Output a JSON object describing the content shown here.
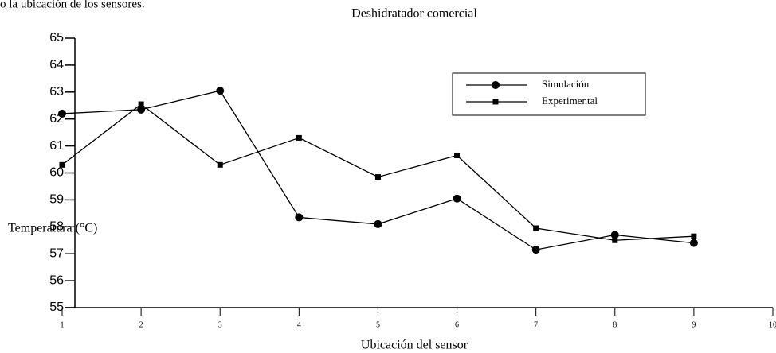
{
  "header_text": "o la ubicación de los sensores.",
  "chart_data": {
    "type": "line",
    "title": "Deshidratador comercial",
    "x_label": "Ubicación del sensor",
    "y_label": "Temperatura (°C)",
    "x": [
      1,
      2,
      3,
      4,
      5,
      6,
      7,
      8,
      9
    ],
    "series": [
      {
        "name": "Simulación",
        "color": "#000000",
        "marker": "circle",
        "values": [
          62.2,
          62.35,
          63.05,
          58.35,
          58.1,
          59.05,
          57.15,
          57.7,
          57.4
        ]
      },
      {
        "name": "Experimental",
        "color": "#000000",
        "marker": "square",
        "values": [
          60.3,
          62.55,
          60.3,
          61.3,
          59.85,
          60.65,
          57.95,
          57.5,
          57.65
        ]
      }
    ],
    "xlim": [
      1,
      10
    ],
    "xticks": [
      1,
      2,
      3,
      4,
      5,
      6,
      7,
      8,
      9,
      10
    ],
    "ylim": [
      55,
      65
    ],
    "yticks": [
      55,
      56,
      57,
      58,
      59,
      60,
      61,
      62,
      63,
      64,
      65
    ],
    "grid": false,
    "legend": "upper right"
  }
}
